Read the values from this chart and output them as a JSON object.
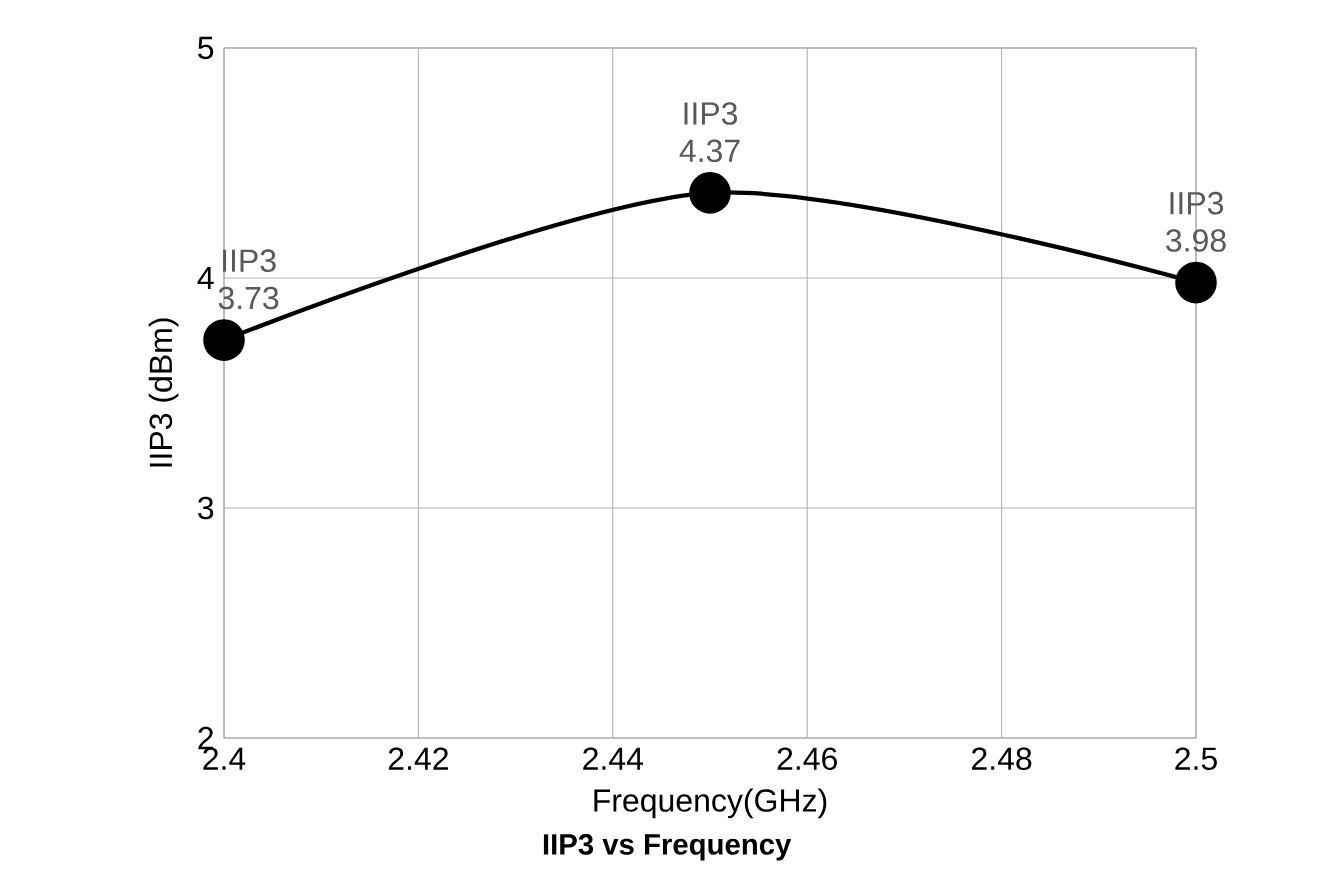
{
  "chart_data": {
    "type": "line",
    "title": "IIP3 vs Frequency",
    "xlabel": "Frequency(GHz)",
    "ylabel": "IIP3 (dBm)",
    "x": [
      2.4,
      2.45,
      2.5
    ],
    "series": [
      {
        "name": "IIP3",
        "color": "#000000",
        "values": [
          3.73,
          4.37,
          3.98
        ]
      }
    ],
    "xlim": [
      2.4,
      2.5
    ],
    "xticks": [
      2.4,
      2.42,
      2.44,
      2.46,
      2.48,
      2.5
    ],
    "ylim": [
      2,
      5
    ],
    "yticks": [
      2,
      3,
      4,
      5
    ],
    "grid": true,
    "legend": false,
    "marker": "circle",
    "line_style": "solid",
    "data_labels": true
  }
}
